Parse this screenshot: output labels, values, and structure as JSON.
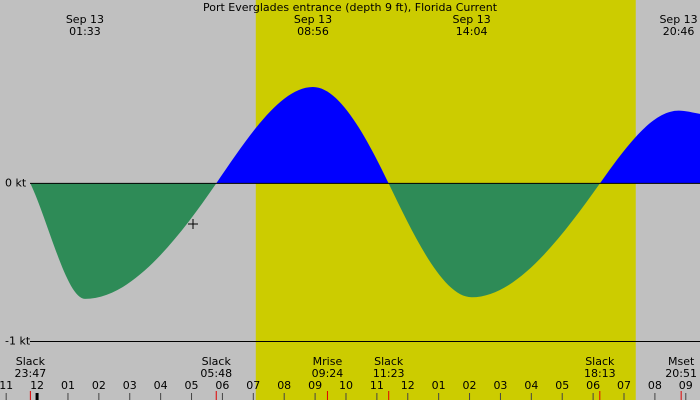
{
  "chart_data": {
    "type": "area",
    "title": "Port Everglades entrance (depth 9 ft), Florida Current",
    "x": [
      -0.217,
      1.55,
      5.8,
      8.93,
      11.38,
      14.07,
      18.22,
      20.77,
      21.46
    ],
    "values": [
      0,
      -0.73,
      0,
      0.61,
      0,
      -0.72,
      0,
      0.46,
      0.44
    ],
    "xlim": [
      -1.2,
      21.46
    ],
    "ylim": [
      -1.37,
      1.16
    ],
    "yticks": [
      {
        "value": 0,
        "label": "0 kt"
      },
      {
        "value": -1,
        "label": "-1 kt"
      }
    ],
    "xticks": [
      {
        "value": -1,
        "label": "11"
      },
      {
        "value": 0,
        "label": "12"
      },
      {
        "value": 1,
        "label": "01"
      },
      {
        "value": 2,
        "label": "02"
      },
      {
        "value": 3,
        "label": "03"
      },
      {
        "value": 4,
        "label": "04"
      },
      {
        "value": 5,
        "label": "05"
      },
      {
        "value": 6,
        "label": "06"
      },
      {
        "value": 7,
        "label": "07"
      },
      {
        "value": 8,
        "label": "08"
      },
      {
        "value": 9,
        "label": "09"
      },
      10,
      11,
      12,
      {
        "value": 13,
        "label": "01"
      },
      {
        "value": 14,
        "label": "02"
      },
      {
        "value": 15,
        "label": "03"
      },
      {
        "value": 16,
        "label": "04"
      },
      {
        "value": 17,
        "label": "05"
      },
      {
        "value": 18,
        "label": "06"
      },
      {
        "value": 19,
        "label": "07"
      },
      {
        "value": 20,
        "label": "08"
      },
      {
        "value": 21,
        "label": "09"
      }
    ],
    "daylight": [
      7.08,
      19.38
    ],
    "colors": {
      "flood": "#0000ff",
      "ebb": "#2e8b57",
      "night": "#c0c0c0",
      "day": "#cccc00"
    },
    "top_labels": [
      {
        "date": "Sep 13",
        "time": "01:33"
      },
      {
        "date": "Sep 13",
        "time": "08:56"
      },
      {
        "date": "Sep 13",
        "time": "14:04"
      },
      {
        "date": "Sep 13",
        "time": "20:46"
      }
    ],
    "events": [
      {
        "label": "Slack",
        "time": "23:47"
      },
      {
        "label": "Slack",
        "time": "05:48"
      },
      {
        "label": "Mrise",
        "time": "09:24"
      },
      {
        "label": "Slack",
        "time": "11:23"
      },
      {
        "label": "Slack",
        "time": "18:13"
      },
      {
        "label": "Mset",
        "time": "20:51"
      }
    ]
  }
}
